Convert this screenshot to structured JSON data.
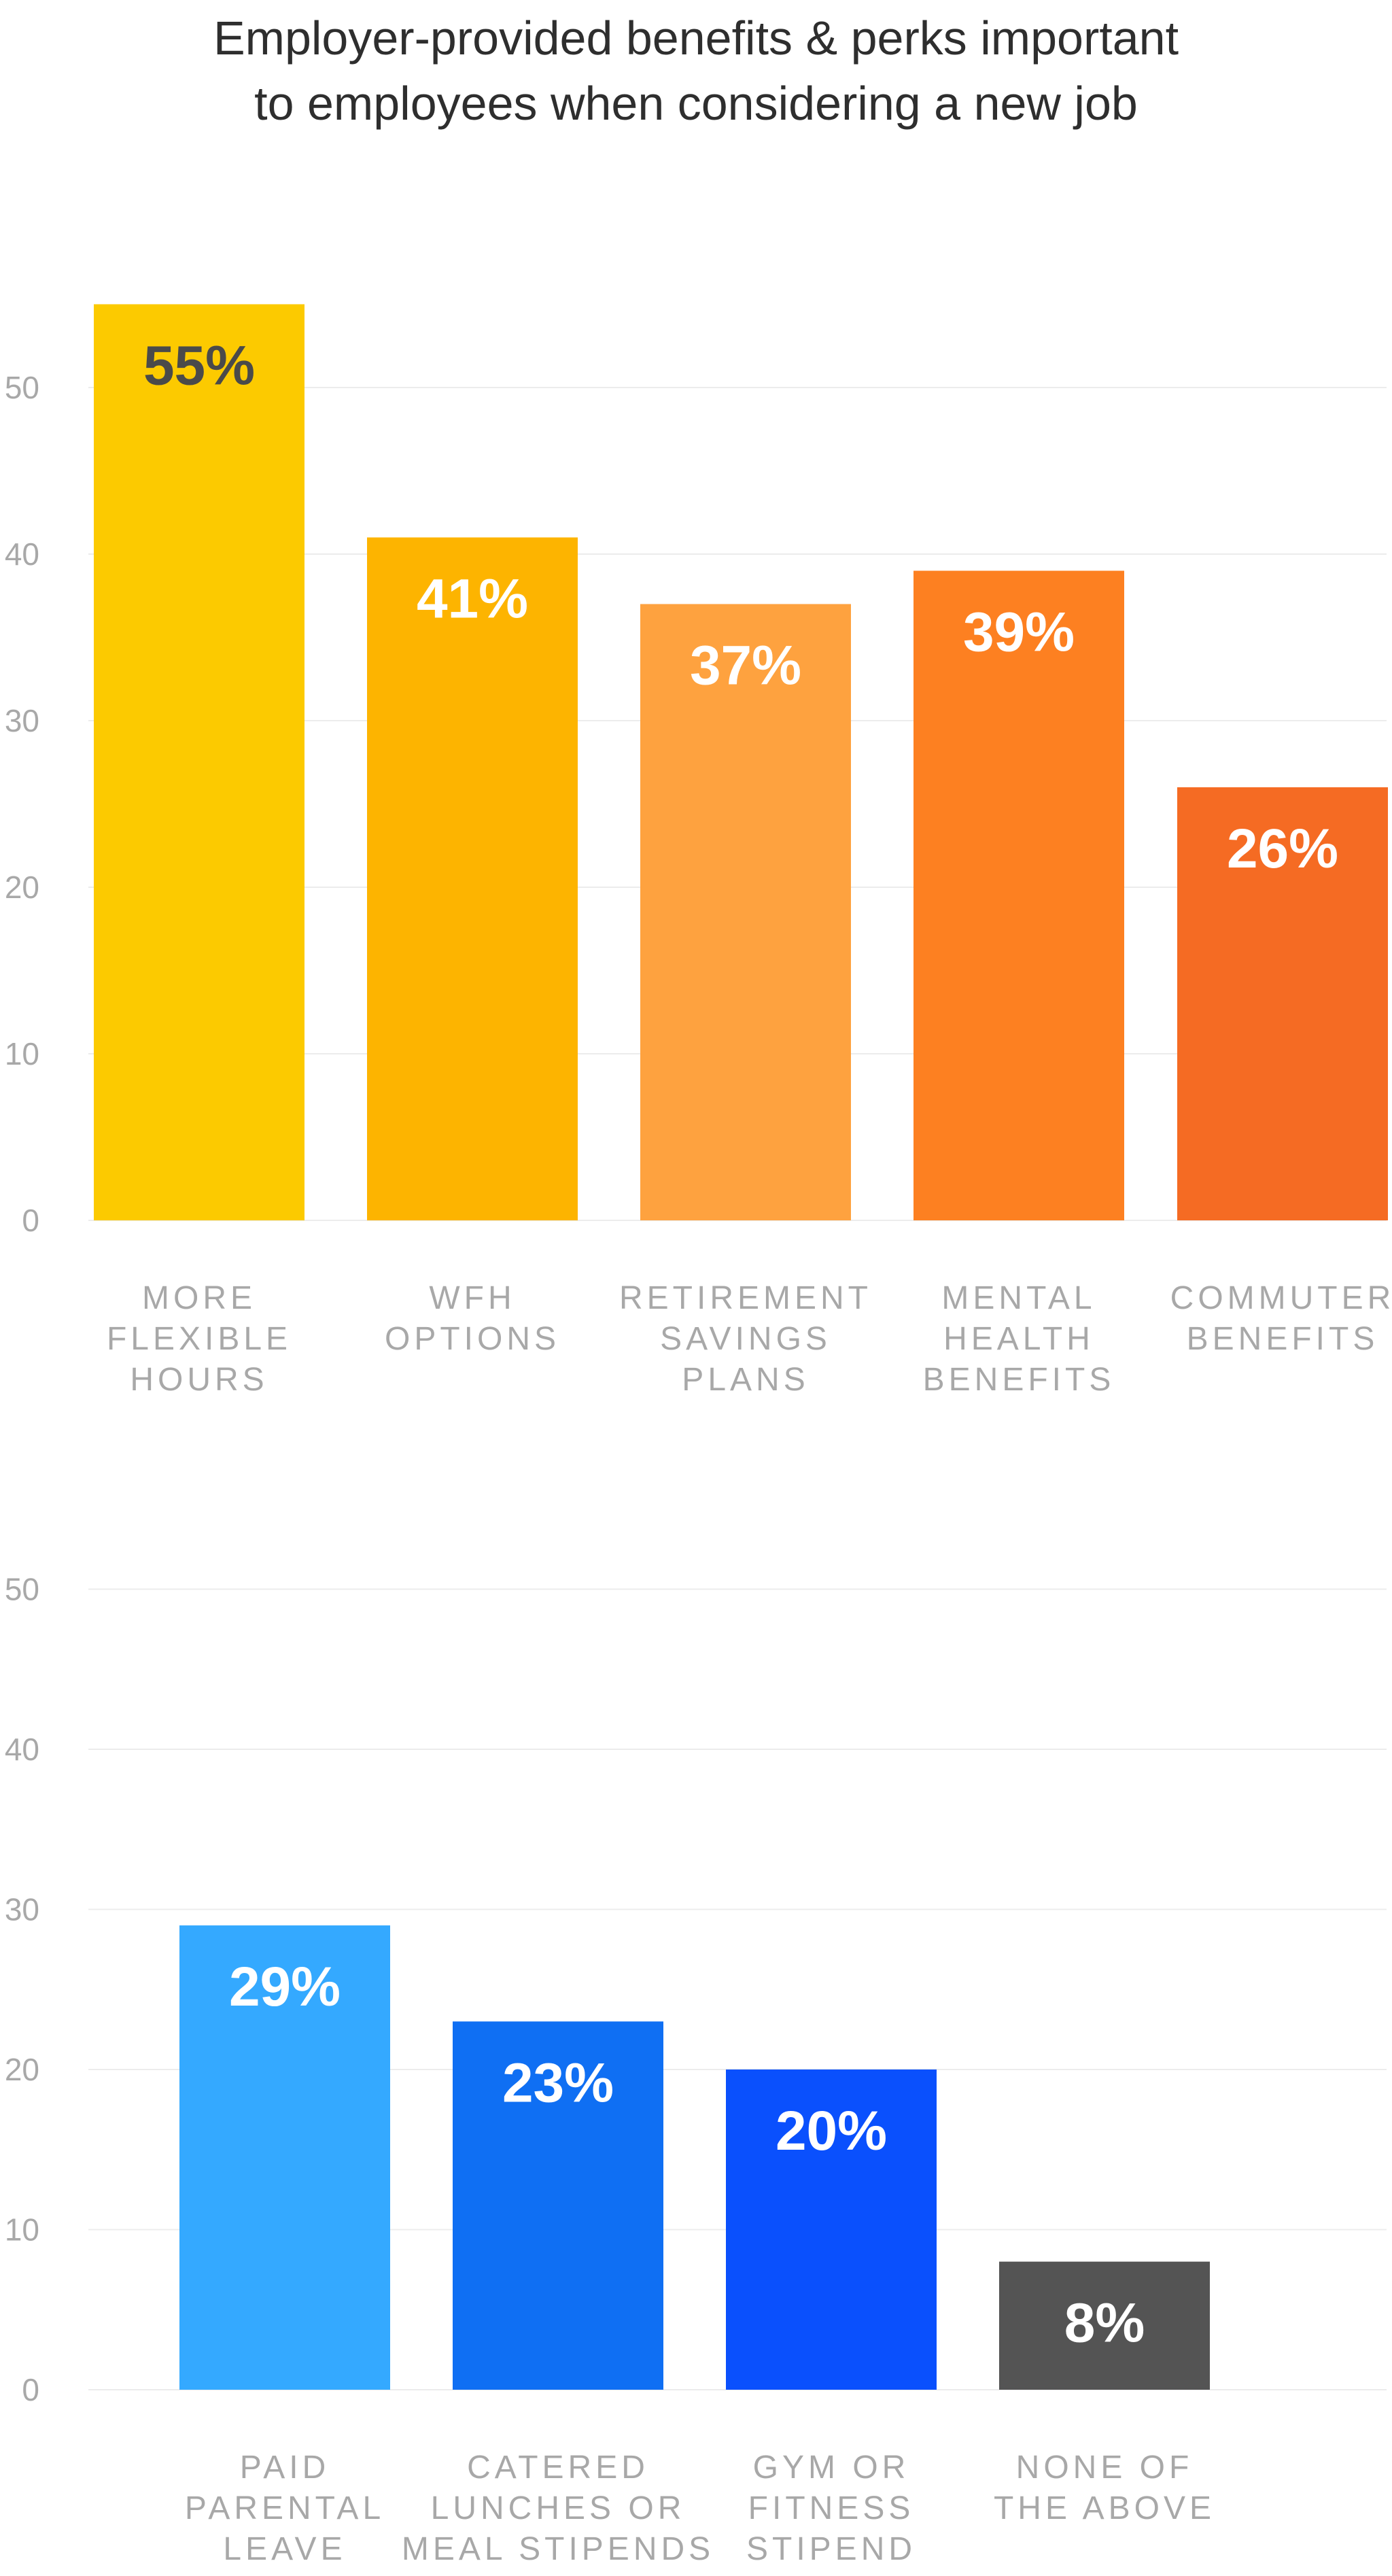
{
  "title": {
    "line1": "Employer-provided benefits & perks important",
    "line2": "to employees when considering a new job"
  },
  "chart_data": [
    {
      "type": "bar",
      "ylim": [
        0,
        55
      ],
      "yticks": [
        0,
        10,
        20,
        30,
        40,
        50
      ],
      "categories": [
        [
          "MORE",
          "FLEXIBLE",
          "HOURS"
        ],
        [
          "WFH",
          "OPTIONS"
        ],
        [
          "RETIREMENT",
          "SAVINGS",
          "PLANS"
        ],
        [
          "MENTAL",
          "HEALTH",
          "BENEFITS"
        ],
        [
          "COMMUTER",
          "BENEFITS"
        ]
      ],
      "values": [
        55,
        41,
        37,
        39,
        26
      ],
      "data_labels": [
        "55%",
        "41%",
        "37%",
        "39%",
        "26%"
      ],
      "colors": [
        "#fcca00",
        "#fdb400",
        "#fea23f",
        "#fd8021",
        "#f56b23"
      ],
      "label_colors": [
        "#4a4a4a",
        "#ffffff",
        "#ffffff",
        "#ffffff",
        "#ffffff"
      ],
      "grid": true,
      "legend": "none"
    },
    {
      "type": "bar",
      "ylim": [
        0,
        55
      ],
      "yticks": [
        0,
        10,
        20,
        30,
        40,
        50
      ],
      "categories": [
        [
          "PAID",
          "PARENTAL",
          "LEAVE"
        ],
        [
          "CATERED",
          "LUNCHES OR",
          "MEAL STIPENDS"
        ],
        [
          "GYM OR",
          "FITNESS",
          "STIPEND"
        ],
        [
          "NONE OF",
          "THE ABOVE"
        ]
      ],
      "values": [
        29,
        23,
        20,
        8
      ],
      "data_labels": [
        "29%",
        "23%",
        "20%",
        "8%"
      ],
      "colors": [
        "#34a9ff",
        "#0f6ff3",
        "#0a50fd",
        "#545454"
      ],
      "label_colors": [
        "#ffffff",
        "#ffffff",
        "#ffffff",
        "#ffffff"
      ],
      "grid": true,
      "legend": "none"
    }
  ]
}
